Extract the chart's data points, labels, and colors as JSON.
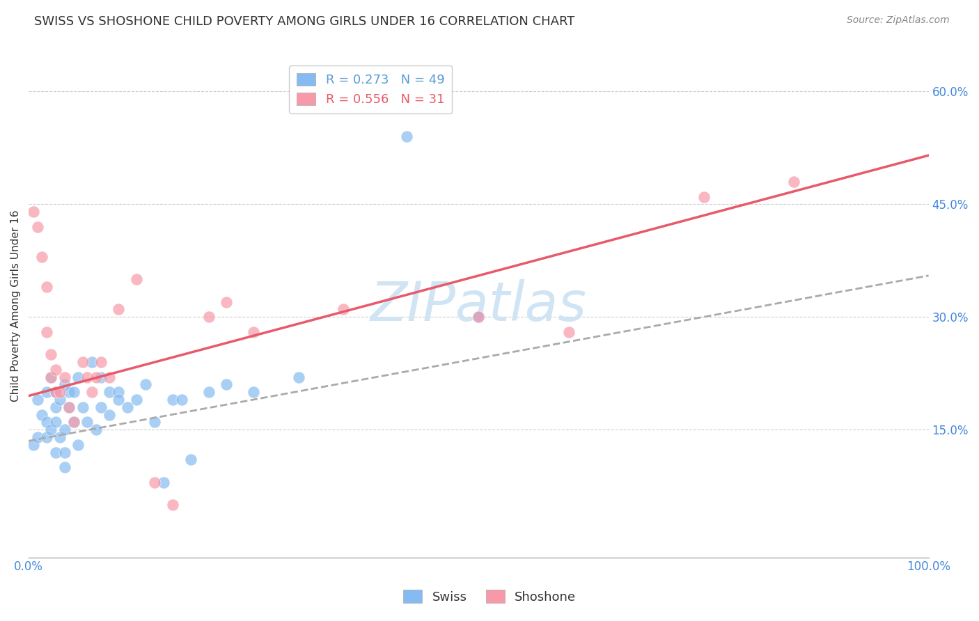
{
  "title": "SWISS VS SHOSHONE CHILD POVERTY AMONG GIRLS UNDER 16 CORRELATION CHART",
  "source": "Source: ZipAtlas.com",
  "ylabel": "Child Poverty Among Girls Under 16",
  "xlim": [
    0,
    1.0
  ],
  "ylim": [
    -0.02,
    0.65
  ],
  "xticks": [
    0.0,
    0.2,
    0.4,
    0.6,
    0.8,
    1.0
  ],
  "xtick_labels": [
    "0.0%",
    "",
    "",
    "",
    "",
    "100.0%"
  ],
  "yticks": [
    0.15,
    0.3,
    0.45,
    0.6
  ],
  "ytick_labels": [
    "15.0%",
    "30.0%",
    "45.0%",
    "60.0%"
  ],
  "swiss_color": "#85BBF0",
  "shoshone_color": "#F799A8",
  "regression_swiss_color": "#AAAAAA",
  "regression_swiss_linestyle": "--",
  "regression_shoshone_color": "#E8596A",
  "regression_shoshone_linestyle": "-",
  "watermark_color": "#D0E4F4",
  "swiss_x": [
    0.005,
    0.01,
    0.01,
    0.015,
    0.02,
    0.02,
    0.02,
    0.025,
    0.025,
    0.03,
    0.03,
    0.03,
    0.03,
    0.035,
    0.035,
    0.04,
    0.04,
    0.04,
    0.04,
    0.045,
    0.045,
    0.05,
    0.05,
    0.055,
    0.055,
    0.06,
    0.065,
    0.07,
    0.075,
    0.08,
    0.08,
    0.09,
    0.09,
    0.1,
    0.1,
    0.11,
    0.12,
    0.13,
    0.14,
    0.15,
    0.16,
    0.17,
    0.18,
    0.2,
    0.22,
    0.25,
    0.3,
    0.42,
    0.5
  ],
  "swiss_y": [
    0.13,
    0.14,
    0.19,
    0.17,
    0.2,
    0.16,
    0.14,
    0.15,
    0.22,
    0.2,
    0.16,
    0.18,
    0.12,
    0.19,
    0.14,
    0.15,
    0.21,
    0.12,
    0.1,
    0.2,
    0.18,
    0.2,
    0.16,
    0.22,
    0.13,
    0.18,
    0.16,
    0.24,
    0.15,
    0.22,
    0.18,
    0.2,
    0.17,
    0.2,
    0.19,
    0.18,
    0.19,
    0.21,
    0.16,
    0.08,
    0.19,
    0.19,
    0.11,
    0.2,
    0.21,
    0.2,
    0.22,
    0.54,
    0.3
  ],
  "shoshone_x": [
    0.005,
    0.01,
    0.015,
    0.02,
    0.02,
    0.025,
    0.025,
    0.03,
    0.03,
    0.035,
    0.04,
    0.045,
    0.05,
    0.06,
    0.065,
    0.07,
    0.075,
    0.08,
    0.09,
    0.1,
    0.12,
    0.14,
    0.16,
    0.2,
    0.22,
    0.25,
    0.35,
    0.5,
    0.6,
    0.75,
    0.85
  ],
  "shoshone_y": [
    0.44,
    0.42,
    0.38,
    0.34,
    0.28,
    0.25,
    0.22,
    0.2,
    0.23,
    0.2,
    0.22,
    0.18,
    0.16,
    0.24,
    0.22,
    0.2,
    0.22,
    0.24,
    0.22,
    0.31,
    0.35,
    0.08,
    0.05,
    0.3,
    0.32,
    0.28,
    0.31,
    0.3,
    0.28,
    0.46,
    0.48
  ],
  "swiss_intercept": 0.135,
  "swiss_slope": 0.22,
  "shoshone_intercept": 0.195,
  "shoshone_slope": 0.32,
  "grid_color": "#CCCCCC",
  "background_color": "#FFFFFF",
  "title_fontsize": 13,
  "axis_label_fontsize": 11,
  "tick_fontsize": 12,
  "legend_fontsize": 13,
  "source_fontsize": 10,
  "legend_r_swiss": "R = 0.273",
  "legend_n_swiss": "N = 49",
  "legend_r_shoshone": "R = 0.556",
  "legend_n_shoshone": "N = 31",
  "legend_color_swiss": "#5B9BD5",
  "legend_color_shoshone": "#E8596A",
  "tick_color": "#4488DD"
}
